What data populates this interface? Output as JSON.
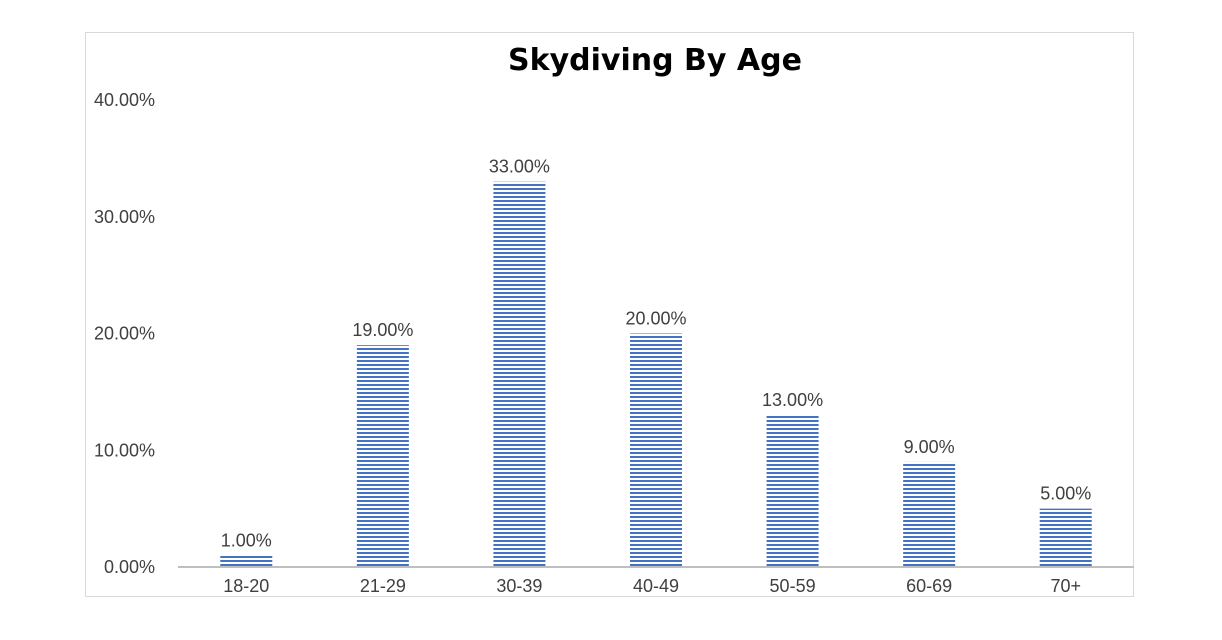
{
  "chart_data": {
    "type": "bar",
    "title": "Skydiving By Age",
    "xlabel": "",
    "ylabel": "",
    "categories": [
      "18-20",
      "21-29",
      "30-39",
      "40-49",
      "50-59",
      "60-69",
      "70+"
    ],
    "values": [
      1,
      19,
      33,
      20,
      13,
      9,
      5
    ],
    "data_labels": [
      "1.00%",
      "19.00%",
      "33.00%",
      "20.00%",
      "13.00%",
      "9.00%",
      "5.00%"
    ],
    "y_ticks": [
      0,
      10,
      20,
      30,
      40
    ],
    "y_tick_labels": [
      "0.00%",
      "10.00%",
      "20.00%",
      "30.00%",
      "40.00%"
    ],
    "ylim": [
      0,
      40
    ],
    "unit": "%",
    "grid": false,
    "legend": "none",
    "colors": {
      "bar_stripe": "#4472c4",
      "bar_background": "#ffffff",
      "axis_line": "#bfbfbf",
      "text": "#404040",
      "title": "#000000"
    }
  }
}
